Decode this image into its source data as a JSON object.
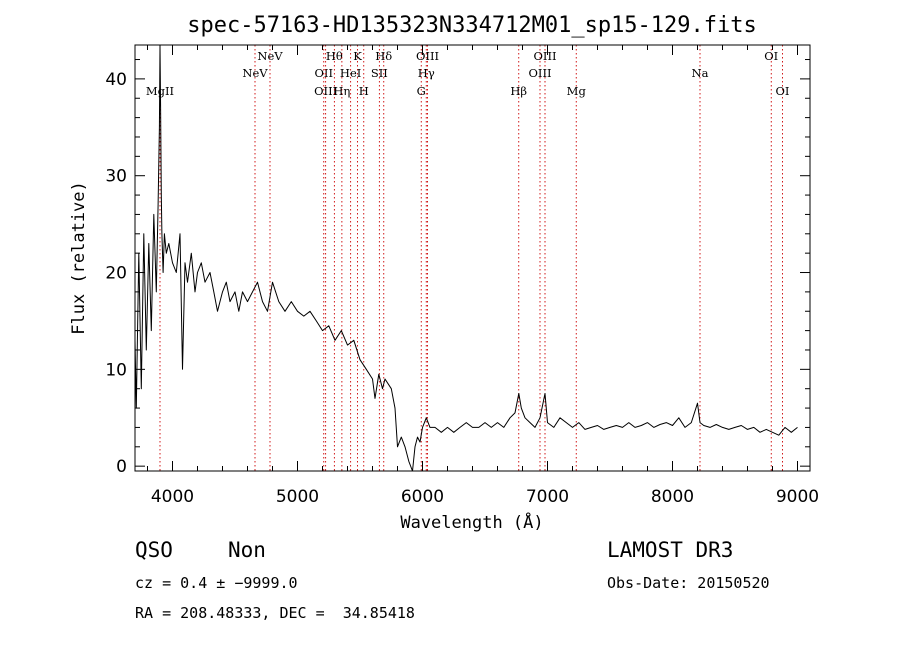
{
  "chart_data": {
    "type": "line",
    "title": "spec-57163-HD135323N334712M01_sp15-129.fits",
    "xlabel": "Wavelength (Å)",
    "ylabel": "Flux (relative)",
    "xlim": [
      3700,
      9100
    ],
    "ylim": [
      -0.5,
      43.5
    ],
    "xticks": [
      4000,
      5000,
      6000,
      7000,
      8000,
      9000
    ],
    "yticks": [
      0,
      10,
      20,
      30,
      40
    ],
    "series": [
      {
        "name": "flux",
        "x": [
          3700,
          3710,
          3730,
          3750,
          3770,
          3790,
          3810,
          3830,
          3850,
          3870,
          3885,
          3895,
          3900,
          3905,
          3910,
          3915,
          3925,
          3935,
          3950,
          3970,
          4000,
          4030,
          4060,
          4080,
          4100,
          4120,
          4150,
          4180,
          4200,
          4230,
          4260,
          4300,
          4330,
          4360,
          4400,
          4430,
          4460,
          4500,
          4530,
          4560,
          4600,
          4640,
          4680,
          4720,
          4760,
          4800,
          4850,
          4900,
          4950,
          5000,
          5050,
          5100,
          5150,
          5200,
          5250,
          5300,
          5350,
          5400,
          5450,
          5500,
          5550,
          5600,
          5620,
          5650,
          5680,
          5700,
          5750,
          5780,
          5800,
          5830,
          5860,
          5890,
          5920,
          5940,
          5960,
          5980,
          6000,
          6030,
          6060,
          6100,
          6150,
          6200,
          6250,
          6300,
          6350,
          6400,
          6450,
          6500,
          6550,
          6600,
          6650,
          6700,
          6740,
          6770,
          6790,
          6820,
          6860,
          6900,
          6940,
          6980,
          7000,
          7050,
          7100,
          7150,
          7200,
          7250,
          7300,
          7350,
          7400,
          7450,
          7500,
          7550,
          7600,
          7650,
          7700,
          7750,
          7800,
          7850,
          7900,
          7950,
          8000,
          8050,
          8100,
          8150,
          8200,
          8220,
          8250,
          8300,
          8350,
          8400,
          8450,
          8500,
          8550,
          8600,
          8650,
          8700,
          8750,
          8800,
          8850,
          8900,
          8950,
          9000
        ],
        "values": [
          13,
          6,
          22,
          8,
          24,
          12,
          23,
          14,
          26,
          18,
          27,
          35,
          45,
          37,
          28,
          24,
          20,
          24,
          22,
          23,
          21,
          20,
          24,
          10,
          21,
          19,
          22,
          18,
          20,
          21,
          19,
          20,
          18,
          16,
          18,
          19,
          17,
          18,
          16,
          18,
          17,
          18,
          19,
          17,
          16,
          19,
          17,
          16,
          17,
          16,
          15.5,
          16,
          15,
          14,
          14.5,
          13,
          14,
          12.5,
          13,
          11,
          10,
          9,
          7,
          9.5,
          8,
          9,
          8,
          6,
          2,
          3,
          2,
          0.5,
          -0.5,
          2,
          3,
          2.5,
          4,
          5,
          4,
          4,
          3.5,
          4,
          3.5,
          4,
          4.5,
          4,
          4,
          4.5,
          4,
          4.5,
          4,
          5,
          5.5,
          7.5,
          6,
          5,
          4.5,
          4,
          5,
          7.5,
          4.5,
          4,
          5,
          4.5,
          4,
          4.5,
          3.8,
          4,
          4.2,
          3.8,
          4,
          4.2,
          4,
          4.5,
          4,
          4.2,
          4.5,
          4,
          4.3,
          4.5,
          4.2,
          5,
          4,
          4.5,
          6.5,
          4.5,
          4.2,
          4,
          4.3,
          4,
          3.8,
          4,
          4.2,
          3.8,
          4,
          3.5,
          3.8,
          3.5,
          3.2,
          4,
          3.5,
          4
        ]
      }
    ],
    "emission_lines": [
      {
        "label": "MgII",
        "wavelength": 3900,
        "row": 3
      },
      {
        "label": "NeV",
        "wavelength": 4660,
        "row": 2
      },
      {
        "label": "NeV",
        "wavelength": 4780,
        "row": 1
      },
      {
        "label": "OII",
        "wavelength": 5210,
        "row": 2
      },
      {
        "label": "OIII",
        "wavelength": 5225,
        "row": 3
      },
      {
        "label": "Hθ",
        "wavelength": 5295,
        "row": 1
      },
      {
        "label": "Hη",
        "wavelength": 5355,
        "row": 3
      },
      {
        "label": "HeI",
        "wavelength": 5425,
        "row": 2
      },
      {
        "label": "K",
        "wavelength": 5480,
        "row": 1
      },
      {
        "label": "H",
        "wavelength": 5530,
        "row": 3
      },
      {
        "label": "Hδ",
        "wavelength": 5690,
        "row": 1
      },
      {
        "label": "SII",
        "wavelength": 5655,
        "row": 2
      },
      {
        "label": "OIII",
        "wavelength": 6040,
        "row": 1
      },
      {
        "label": "Hγ",
        "wavelength": 6030,
        "row": 2
      },
      {
        "label": "G",
        "wavelength": 5990,
        "row": 3
      },
      {
        "label": "Hβ",
        "wavelength": 6770,
        "row": 3
      },
      {
        "label": "OIII",
        "wavelength": 6980,
        "row": 1
      },
      {
        "label": "OIII",
        "wavelength": 6940,
        "row": 2
      },
      {
        "label": "Mg",
        "wavelength": 7230,
        "row": 3
      },
      {
        "label": "Na",
        "wavelength": 8220,
        "row": 2
      },
      {
        "label": "OI",
        "wavelength": 8790,
        "row": 1
      },
      {
        "label": "OI",
        "wavelength": 8880,
        "row": 3
      }
    ]
  },
  "footer": {
    "class": "QSO",
    "subclass": "Non",
    "survey": "LAMOST DR3",
    "cz": "cz = 0.4 ± −9999.0",
    "obs_date": "Obs-Date: 20150520",
    "radec": "RA = 208.48333, DEC =  34.85418"
  }
}
